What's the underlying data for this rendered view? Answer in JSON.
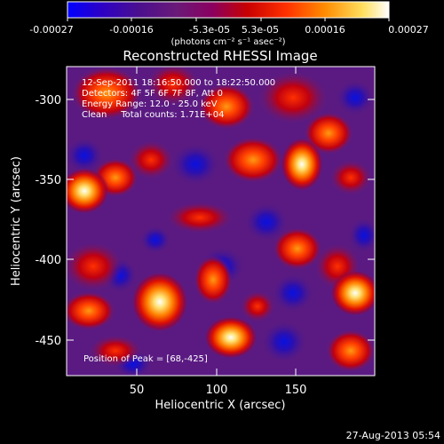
{
  "colorbar": {
    "tick_labels": [
      "-0.00027",
      "-0.00016",
      "-5.3e-05",
      "5.3e-05",
      "0.00016",
      "0.00027"
    ],
    "units": "(photons cm⁻² s⁻¹ asec⁻²)",
    "colors": [
      "#0000ff",
      "#2b00c8",
      "#4a0f8f",
      "#6a1a78",
      "#8a0060",
      "#c80000",
      "#ff3000",
      "#ff8c00",
      "#ffe060",
      "#ffffff"
    ]
  },
  "image": {
    "title": "Reconstructed RHESSI Image",
    "info_lines": [
      "12-Sep-2011 18:16:50.000 to 18:22:50.000",
      "Detectors: 4F 5F 6F 7F 8F, Att 0",
      "Energy Range: 12.0 - 25.0 keV",
      "Clean     Total counts: 1.71E+04"
    ],
    "peak_label": "Position of Peak = [68,-425]",
    "x_label": "Heliocentric X (arcsec)",
    "y_label": "Heliocentric Y (arcsec)",
    "x_ticks": [
      "50",
      "100",
      "150"
    ],
    "y_ticks": [
      "-300",
      "-350",
      "-400",
      "-450"
    ]
  },
  "footer": {
    "timestamp": "27-Aug-2013 05:54"
  }
}
